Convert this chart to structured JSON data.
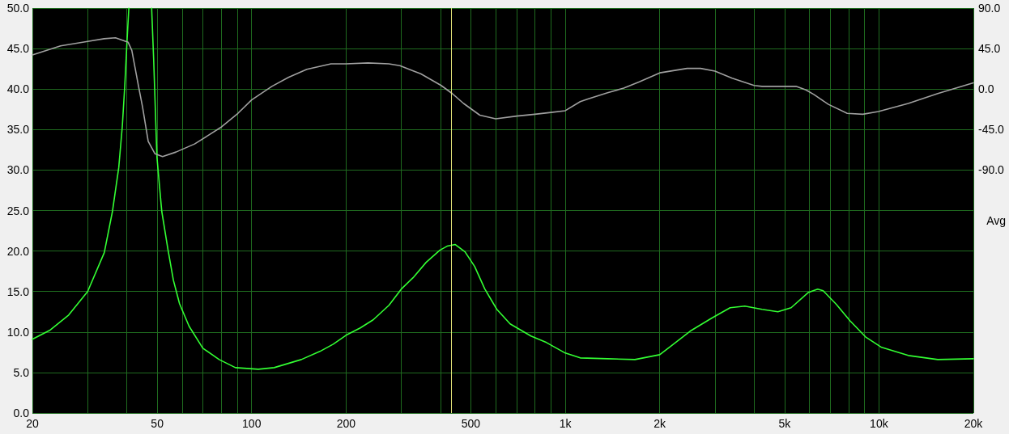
{
  "chart_data": {
    "type": "line",
    "log": "x",
    "grid": true,
    "marker": "none",
    "xlim": [
      20,
      20000
    ],
    "xticks": [
      {
        "value": 20,
        "label": "20"
      },
      {
        "value": 30,
        "label": null
      },
      {
        "value": 40,
        "label": null
      },
      {
        "value": 50,
        "label": "50"
      },
      {
        "value": 60,
        "label": null
      },
      {
        "value": 70,
        "label": null
      },
      {
        "value": 80,
        "label": null
      },
      {
        "value": 90,
        "label": null
      },
      {
        "value": 100,
        "label": "100"
      },
      {
        "value": 200,
        "label": "200"
      },
      {
        "value": 300,
        "label": null
      },
      {
        "value": 400,
        "label": null
      },
      {
        "value": 500,
        "label": "500"
      },
      {
        "value": 600,
        "label": null
      },
      {
        "value": 700,
        "label": null
      },
      {
        "value": 800,
        "label": null
      },
      {
        "value": 900,
        "label": null
      },
      {
        "value": 1000,
        "label": "1k"
      },
      {
        "value": 2000,
        "label": "2k"
      },
      {
        "value": 3000,
        "label": null
      },
      {
        "value": 4000,
        "label": null
      },
      {
        "value": 5000,
        "label": "5k"
      },
      {
        "value": 6000,
        "label": null
      },
      {
        "value": 7000,
        "label": null
      },
      {
        "value": 8000,
        "label": null
      },
      {
        "value": 9000,
        "label": null
      },
      {
        "value": 10000,
        "label": "10k"
      },
      {
        "value": 20000,
        "label": "20k"
      }
    ],
    "ylim": [
      0,
      50
    ],
    "yticks": [
      {
        "value": 0,
        "label": "0.0"
      },
      {
        "value": 5,
        "label": "5.0"
      },
      {
        "value": 10,
        "label": "10.0"
      },
      {
        "value": 15,
        "label": "15.0"
      },
      {
        "value": 20,
        "label": "20.0"
      },
      {
        "value": 25,
        "label": "25.0"
      },
      {
        "value": 30,
        "label": "30.0"
      },
      {
        "value": 35,
        "label": "35.0"
      },
      {
        "value": 40,
        "label": "40.0"
      },
      {
        "value": 45,
        "label": "45.0"
      },
      {
        "value": 50,
        "label": "50.0"
      }
    ],
    "y2lim": [
      -360,
      90
    ],
    "y2ticks": [
      {
        "value": 90,
        "label": "90.0"
      },
      {
        "value": 45,
        "label": "45.0"
      },
      {
        "value": 0,
        "label": "0.0"
      },
      {
        "value": -45,
        "label": "-45.0"
      },
      {
        "value": -90,
        "label": "-90.0"
      }
    ],
    "annotations": [
      "Avg"
    ],
    "ref_lines": [
      {
        "axis": "x",
        "value": 432,
        "color": "#e6e67a"
      }
    ],
    "series": [
      {
        "color": "#33ff33",
        "x": [
          20,
          22.7,
          26.1,
          30,
          33.9,
          36,
          37.7,
          38.7,
          39.4,
          40.1,
          40.6,
          44,
          48.0,
          48.7,
          49.9,
          51.7,
          54.1,
          56.3,
          58.9,
          63.2,
          69.9,
          78.8,
          88.8,
          105,
          118,
          144,
          165,
          182,
          200,
          222,
          244,
          274,
          300,
          327,
          360,
          398,
          420,
          446,
          479,
          514,
          554,
          605,
          667,
          777,
          871,
          1000,
          1116,
          1364,
          1667,
          2000,
          2178,
          2500,
          2926,
          3354,
          3736,
          4238,
          4763,
          5248,
          5964,
          6380,
          6640,
          7320,
          8080,
          9060,
          10200,
          12400,
          15400,
          20000
        ],
        "values": [
          9.1,
          10.2,
          12.1,
          15.0,
          19.8,
          24.9,
          30.3,
          35.4,
          40.4,
          46.2,
          50,
          null,
          50,
          43.8,
          31.6,
          24.9,
          20.2,
          16.4,
          13.5,
          10.7,
          8.0,
          6.6,
          5.6,
          5.4,
          5.6,
          6.6,
          7.6,
          8.5,
          9.6,
          10.5,
          11.5,
          13.3,
          15.3,
          16.7,
          18.6,
          20.1,
          20.6,
          20.8,
          19.9,
          18.1,
          15.3,
          12.8,
          11.0,
          9.5,
          8.7,
          7.4,
          6.8,
          6.7,
          6.6,
          7.2,
          8.3,
          10.1,
          11.7,
          13.0,
          13.2,
          12.8,
          12.5,
          13.0,
          14.9,
          15.3,
          15.1,
          13.4,
          11.4,
          9.4,
          8.1,
          7.1,
          6.6,
          6.7
        ]
      },
      {
        "color": "#a0a0a0",
        "axis": "y2",
        "x": [
          20,
          24.6,
          30,
          33.9,
          36.8,
          40.4,
          41.5,
          43.6,
          44.9,
          46.8,
          49.2,
          52,
          57.4,
          65.8,
          72.3,
          80.2,
          90.4,
          100,
          116,
          131,
          150,
          179,
          200,
          235,
          274,
          297,
          346,
          402,
          436,
          474,
          534,
          600,
          700,
          800,
          900,
          1000,
          1116,
          1180,
          1364,
          1536,
          1722,
          2000,
          2446,
          2700,
          3000,
          3404,
          4000,
          4238,
          5000,
          5440,
          5850,
          6200,
          6900,
          7920,
          8880,
          9960,
          12400,
          15400,
          20000
        ],
        "values": [
          38,
          48,
          53,
          56,
          57,
          52,
          43,
          3,
          -20,
          -58,
          -72,
          -75,
          -70,
          -61,
          -52,
          -42,
          -27,
          -12,
          3,
          13,
          22,
          28,
          28,
          29,
          28,
          26,
          17,
          4,
          -5,
          -16,
          -29,
          -33,
          -30,
          -28,
          -26,
          -24,
          -14,
          -11,
          -4,
          1,
          8,
          18,
          23,
          23,
          20,
          12,
          4,
          3,
          3,
          3,
          -1,
          -6,
          -17,
          -27,
          -28,
          -25,
          -16,
          -5,
          7
        ]
      }
    ]
  }
}
